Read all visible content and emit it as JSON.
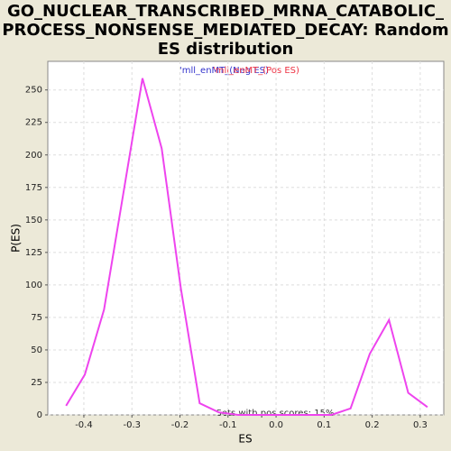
{
  "chart_data": {
    "type": "line",
    "title": [
      "GO_NUCLEAR_TRANSCRIBED_MRNA_CATABOLIC_",
      "PROCESS_NONSENSE_MEDIATED_DECAY: Random",
      "ES distribution"
    ],
    "xlabel": "ES",
    "ylabel": "P(ES)",
    "legend": [
      {
        "name": "'mll_enMT_(Neg ES)",
        "color": "#3333cc"
      },
      {
        "name": "'mll_enMT_(Pos ES)",
        "color": "#ee3344"
      }
    ],
    "annotation": "Sets with pos scores: 15%",
    "series": [
      {
        "name": "P(ES)",
        "color": "#ee44ee",
        "x": [
          -0.437,
          -0.398,
          -0.358,
          -0.318,
          -0.278,
          -0.238,
          -0.198,
          -0.159,
          -0.119,
          -0.079,
          -0.039,
          0.0,
          0.04,
          0.08,
          0.115,
          0.155,
          0.195,
          0.235,
          0.275,
          0.315
        ],
        "values": [
          7,
          31,
          81,
          170,
          259,
          205,
          97,
          9,
          2,
          0,
          0,
          0,
          0,
          0,
          0,
          5,
          47,
          73,
          17,
          6
        ]
      }
    ],
    "xlim": [
      -0.475,
      0.349
    ],
    "ylim": [
      0,
      272
    ],
    "xticks": [
      -0.4,
      -0.3,
      -0.2,
      -0.1,
      {
        "value": 0,
        "label": "0.0"
      },
      0.1,
      0.2,
      0.3
    ],
    "yticks": [
      0,
      25,
      50,
      75,
      100,
      125,
      150,
      175,
      200,
      225,
      250
    ],
    "grid": true
  }
}
